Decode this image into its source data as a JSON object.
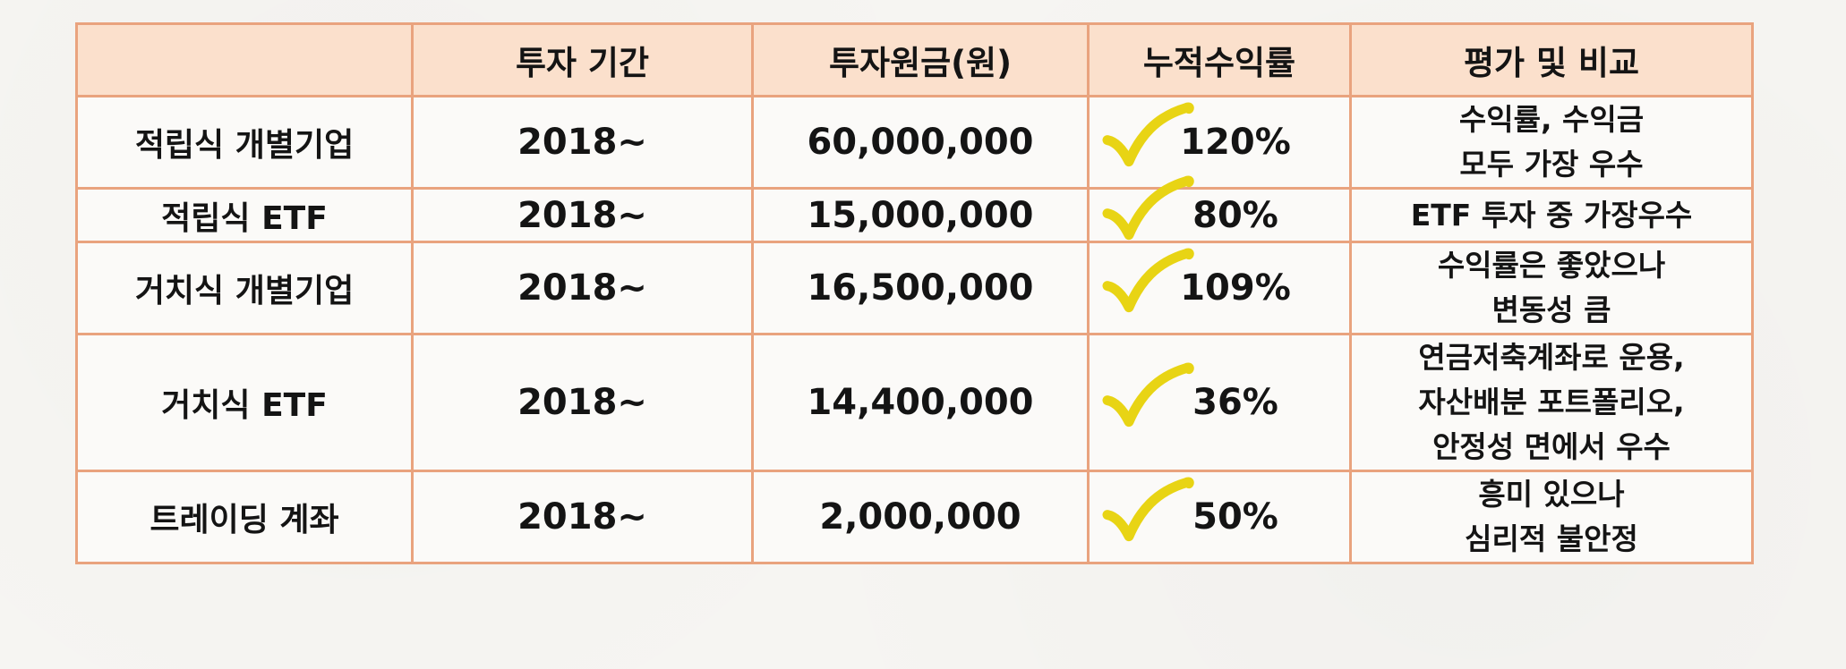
{
  "table": {
    "headers": [
      "",
      "투자 기간",
      "투자원금(원)",
      "누적수익률",
      "평가 및 비교"
    ],
    "rows": [
      {
        "name": "적립식 개별기업",
        "period": "2018~",
        "principal": "60,000,000",
        "return": "120%",
        "evaluation": [
          "수익률, 수익금",
          "모두 가장 우수"
        ]
      },
      {
        "name": "적립식 ETF",
        "period": "2018~",
        "principal": "15,000,000",
        "return": "80%",
        "evaluation": [
          "ETF 투자 중 가장우수"
        ]
      },
      {
        "name": "거치식 개별기업",
        "period": "2018~",
        "principal": "16,500,000",
        "return": "109%",
        "evaluation": [
          "수익률은 좋았으나",
          "변동성 큼"
        ]
      },
      {
        "name": "거치식 ETF",
        "period": "2018~",
        "principal": "14,400,000",
        "return": "36%",
        "evaluation": [
          "연금저축계좌로 운용,",
          "자산배분 포트폴리오,",
          "안정성 면에서 우수"
        ]
      },
      {
        "name": "트레이딩 계좌",
        "period": "2018~",
        "principal": "2,000,000",
        "return": "50%",
        "evaluation": [
          "흥미 있으나",
          "심리적 불안정"
        ]
      }
    ]
  },
  "colors": {
    "border": "#e9a37e",
    "header_bg": "#fbe0cc",
    "checkmark": "#e8d414"
  },
  "icons": {
    "return_mark": "checkmark-icon"
  }
}
